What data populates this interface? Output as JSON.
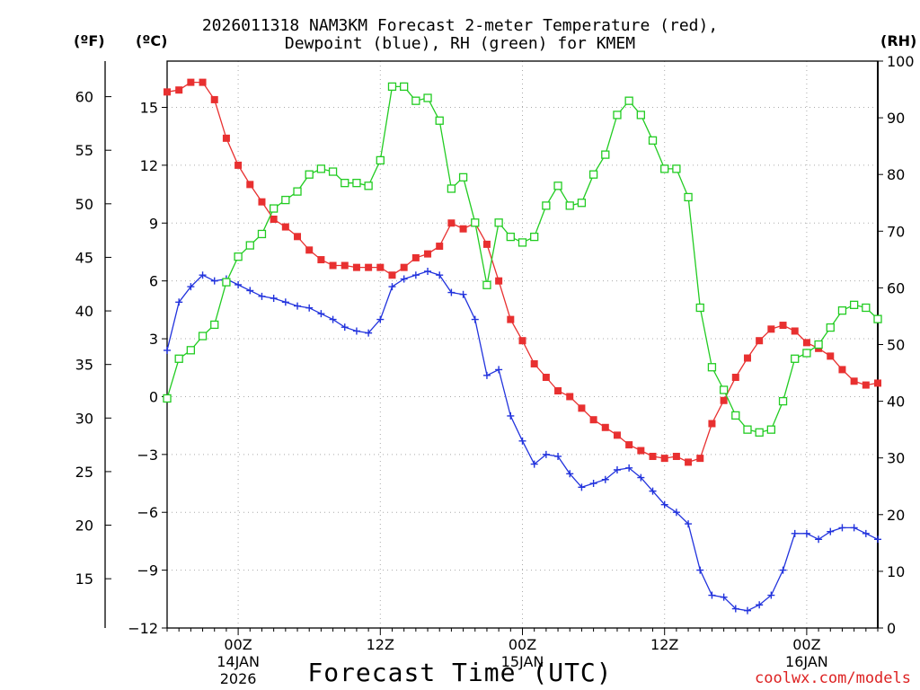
{
  "title_line1": "2026011318 NAM3KM Forecast 2-meter Temperature (red),",
  "title_line2": "Dewpoint (blue), RH (green) for KMEM",
  "unit_f": "(ºF)",
  "unit_c": "(ºC)",
  "unit_rh": "(RH)",
  "xlabel": "Forecast Time (UTC)",
  "credit": "coolwx.com/models",
  "chart_data": {
    "type": "line",
    "title": "2026011318 NAM3KM Forecast 2-meter Temperature (red), Dewpoint (blue), RH (green) for KMEM",
    "xlabel": "Forecast Time (UTC)",
    "x_unit": "forecast hour",
    "x": [
      0,
      1,
      2,
      3,
      4,
      5,
      6,
      7,
      8,
      9,
      10,
      11,
      12,
      13,
      14,
      15,
      16,
      17,
      18,
      19,
      20,
      21,
      22,
      23,
      24,
      25,
      26,
      27,
      28,
      29,
      30,
      31,
      32,
      33,
      34,
      35,
      36,
      37,
      38,
      39,
      40,
      41,
      42,
      43,
      44,
      45,
      46,
      47,
      48,
      49,
      50,
      51,
      52,
      53,
      54,
      55,
      56,
      57,
      58,
      59,
      60
    ],
    "xlim": [
      0,
      60
    ],
    "x_ticks": [
      {
        "hour": 6,
        "label": "00Z",
        "sub1": "14JAN",
        "sub2": "2026"
      },
      {
        "hour": 18,
        "label": "12Z",
        "sub1": "",
        "sub2": ""
      },
      {
        "hour": 30,
        "label": "00Z",
        "sub1": "15JAN",
        "sub2": ""
      },
      {
        "hour": 42,
        "label": "12Z",
        "sub1": "",
        "sub2": ""
      },
      {
        "hour": 54,
        "label": "00Z",
        "sub1": "16JAN",
        "sub2": ""
      }
    ],
    "y_left_c": {
      "label": "(ºC)",
      "lim": [
        -12,
        17.4
      ],
      "ticks": [
        -12,
        -9,
        -6,
        -3,
        0,
        3,
        6,
        9,
        12,
        15
      ]
    },
    "y_left_f": {
      "label": "(ºF)",
      "ticks": [
        15,
        20,
        25,
        30,
        35,
        40,
        45,
        50,
        55,
        60
      ]
    },
    "y_right_rh": {
      "label": "(RH)",
      "lim": [
        0,
        100
      ],
      "ticks": [
        0,
        10,
        20,
        30,
        40,
        50,
        60,
        70,
        80,
        90,
        100
      ]
    },
    "series": [
      {
        "name": "2-meter Temperature",
        "axis": "c",
        "color": "#e83030",
        "marker": "filled-square",
        "values": [
          15.8,
          15.9,
          16.3,
          16.3,
          15.4,
          13.4,
          12.0,
          11.0,
          10.1,
          9.2,
          8.8,
          8.3,
          7.6,
          7.1,
          6.8,
          6.8,
          6.7,
          6.7,
          6.7,
          6.3,
          6.7,
          7.2,
          7.4,
          7.8,
          9.0,
          8.7,
          9.0,
          7.9,
          6.0,
          4.0,
          2.9,
          1.7,
          1.0,
          0.3,
          0.0,
          -0.6,
          -1.2,
          -1.6,
          -2.0,
          -2.5,
          -2.8,
          -3.1,
          -3.2,
          -3.1,
          -3.4,
          -3.2,
          -1.4,
          -0.2,
          1.0,
          2.0,
          2.9,
          3.5,
          3.7,
          3.4,
          2.8,
          2.5,
          2.1,
          1.4,
          0.8,
          0.6,
          0.7
        ]
      },
      {
        "name": "Dewpoint",
        "axis": "c",
        "color": "#2233dd",
        "marker": "plus",
        "values": [
          2.4,
          4.9,
          5.7,
          6.3,
          6.0,
          6.1,
          5.8,
          5.5,
          5.2,
          5.1,
          4.9,
          4.7,
          4.6,
          4.3,
          4.0,
          3.6,
          3.4,
          3.3,
          4.0,
          5.7,
          6.1,
          6.3,
          6.5,
          6.3,
          5.4,
          5.3,
          4.0,
          1.1,
          1.4,
          -1.0,
          -2.3,
          -3.5,
          -3.0,
          -3.1,
          -4.0,
          -4.7,
          -4.5,
          -4.3,
          -3.8,
          -3.7,
          -4.2,
          -4.9,
          -5.6,
          -6.0,
          -6.6,
          -9.0,
          -10.3,
          -10.4,
          -11.0,
          -11.1,
          -10.8,
          -10.3,
          -9.0,
          -7.1,
          -7.1,
          -7.4,
          -7.0,
          -6.8,
          -6.8,
          -7.1,
          -7.4
        ]
      },
      {
        "name": "RH",
        "axis": "rh",
        "color": "#22cc22",
        "marker": "open-square",
        "values": [
          40.5,
          47.5,
          49.0,
          51.5,
          53.5,
          61.0,
          65.5,
          67.5,
          69.5,
          74.0,
          75.5,
          77.0,
          80.0,
          81.0,
          80.5,
          78.5,
          78.5,
          78.0,
          82.5,
          95.5,
          95.5,
          93.0,
          93.5,
          89.5,
          77.5,
          79.5,
          71.5,
          60.5,
          71.5,
          69.0,
          68.0,
          69.0,
          74.5,
          78.0,
          74.5,
          75.0,
          80.0,
          83.5,
          90.5,
          93.0,
          90.5,
          86.0,
          81.0,
          81.0,
          76.0,
          56.5,
          46.0,
          42.0,
          37.5,
          35.0,
          34.5,
          35.0,
          40.0,
          47.5,
          48.5,
          50.0,
          53.0,
          56.0,
          57.0,
          56.5,
          54.5
        ]
      }
    ]
  }
}
